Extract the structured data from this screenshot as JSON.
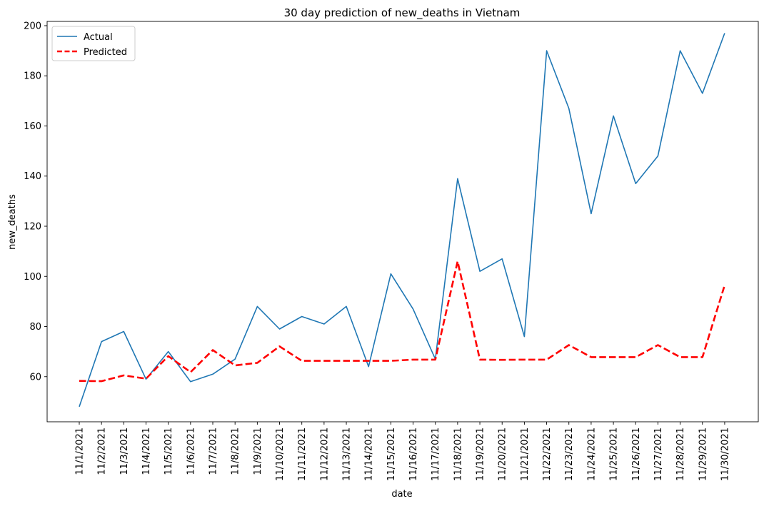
{
  "chart_data": {
    "type": "line",
    "title": "30 day prediction of new_deaths in Vietnam",
    "xlabel": "date",
    "ylabel": "new_deaths",
    "ylim": [
      42,
      201.7
    ],
    "yticks": [
      60,
      80,
      100,
      120,
      140,
      160,
      180,
      200
    ],
    "grid": false,
    "legend_position": "top-left",
    "categories": [
      "11/1/2021",
      "11/2/2021",
      "11/3/2021",
      "11/4/2021",
      "11/5/2021",
      "11/6/2021",
      "11/7/2021",
      "11/8/2021",
      "11/9/2021",
      "11/10/2021",
      "11/11/2021",
      "11/12/2021",
      "11/13/2021",
      "11/14/2021",
      "11/15/2021",
      "11/16/2021",
      "11/17/2021",
      "11/18/2021",
      "11/19/2021",
      "11/20/2021",
      "11/21/2021",
      "11/22/2021",
      "11/23/2021",
      "11/24/2021",
      "11/25/2021",
      "11/26/2021",
      "11/27/2021",
      "11/28/2021",
      "11/29/2021",
      "11/30/2021"
    ],
    "series": [
      {
        "name": "Actual",
        "color": "#1f77b4",
        "style": "solid",
        "values": [
          48,
          74,
          78,
          59,
          70,
          58,
          61,
          67,
          88,
          79,
          84,
          81,
          88,
          64,
          101,
          87,
          67,
          139,
          102,
          107,
          76,
          190,
          167,
          125,
          164,
          137,
          148,
          190,
          173,
          197
        ]
      },
      {
        "name": "Predicted",
        "color": "#ff0000",
        "style": "dashed",
        "values": [
          58.3,
          58.2,
          60.5,
          59.2,
          68.2,
          61.8,
          70.6,
          64.5,
          65.5,
          72.1,
          66.3,
          66.3,
          66.3,
          66.3,
          66.3,
          66.8,
          66.8,
          106,
          66.8,
          66.7,
          66.8,
          66.8,
          72.6,
          67.8,
          67.8,
          67.8,
          72.6,
          67.8,
          67.8,
          96.5
        ]
      }
    ]
  }
}
